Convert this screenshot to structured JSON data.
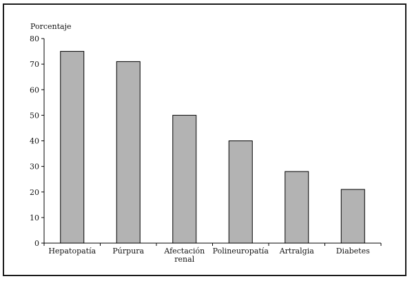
{
  "chart_data": {
    "type": "bar",
    "ylabel": "Porcentaje",
    "xlabel": "",
    "title": "",
    "categories": [
      [
        "Hepatopatía"
      ],
      [
        "Púrpura"
      ],
      [
        "Afectación",
        "renal"
      ],
      [
        "Polineuropatía"
      ],
      [
        "Artralgia"
      ],
      [
        "Diabetes"
      ]
    ],
    "values": [
      75,
      71,
      50,
      40,
      28,
      21
    ],
    "ylim": [
      0,
      80
    ],
    "yticks": [
      0,
      10,
      20,
      30,
      40,
      50,
      60,
      70,
      80
    ],
    "grid": false,
    "legend": "none",
    "colors": {
      "bar_fill": "#b3b3b3",
      "bar_stroke": "#000000",
      "axis": "#000000",
      "frame": "#1a1a1a"
    }
  }
}
